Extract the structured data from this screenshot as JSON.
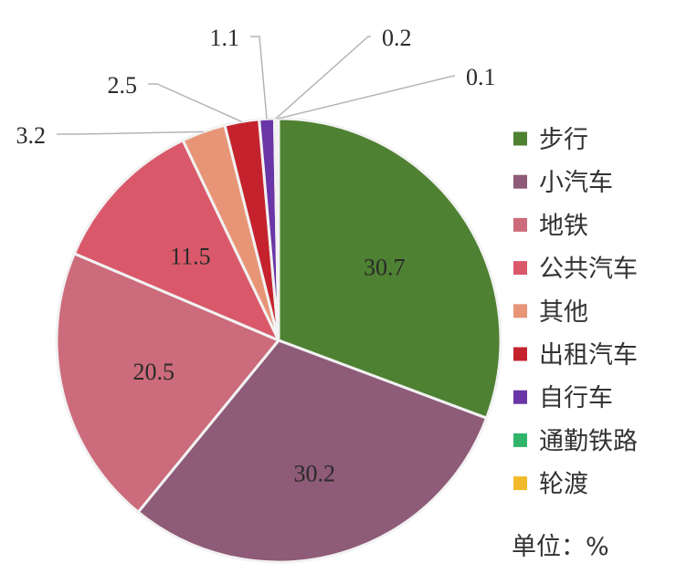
{
  "chart_data": {
    "type": "pie",
    "unit_label": "单位：%",
    "legend_position": "right",
    "slices": [
      {
        "name": "步行",
        "value": 30.7,
        "label": "30.7",
        "color": "#4e8132"
      },
      {
        "name": "小汽车",
        "value": 30.2,
        "label": "30.2",
        "color": "#8e5b78"
      },
      {
        "name": "地铁",
        "value": 20.5,
        "label": "20.5",
        "color": "#cc6b7b"
      },
      {
        "name": "公共汽车",
        "value": 11.5,
        "label": "11.5",
        "color": "#d9596a"
      },
      {
        "name": "其他",
        "value": 3.2,
        "label": "3.2",
        "color": "#e89577"
      },
      {
        "name": "出租汽车",
        "value": 2.5,
        "label": "2.5",
        "color": "#c4232e"
      },
      {
        "name": "自行车",
        "value": 1.1,
        "label": "1.1",
        "color": "#6a35a6"
      },
      {
        "name": "通勤铁路",
        "value": 0.2,
        "label": "0.2",
        "color": "#2fb46a"
      },
      {
        "name": "轮渡",
        "value": 0.1,
        "label": "0.1",
        "color": "#f2b92a"
      }
    ]
  }
}
